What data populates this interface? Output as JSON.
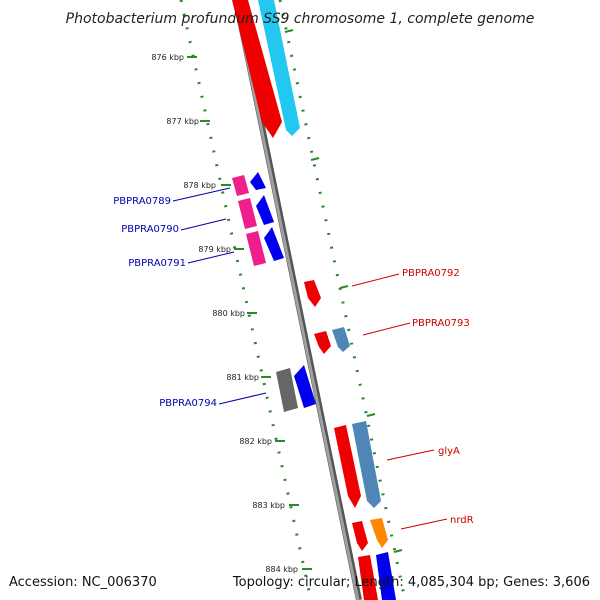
{
  "title": "Photobacterium profundum SS9 chromosome 1, complete genome",
  "footer": {
    "accession": "Accession: NC_006370",
    "topology": "Topology: circular; Length: 4,085,304 bp; Genes: 3,606"
  },
  "colors": {
    "backbone": "#888888",
    "forward_label": "#cc0000",
    "reverse_label": "#0000aa",
    "ruler_dots": "#2a8a2a",
    "strand_dots": "#2a8a2a"
  },
  "ruler_ticks": [
    "876 kbp",
    "877 kbp",
    "878 kbp",
    "879 kbp",
    "880 kbp",
    "881 kbp",
    "882 kbp",
    "883 kbp",
    "884 kbp"
  ],
  "gene_labels": {
    "left": [
      "PBPRA0789",
      "PBPRA0790",
      "PBPRA0791",
      "PBPRA0794"
    ],
    "right": [
      "PBPRA0792",
      "PBPRA0793",
      "glyA",
      "nrdR"
    ]
  }
}
